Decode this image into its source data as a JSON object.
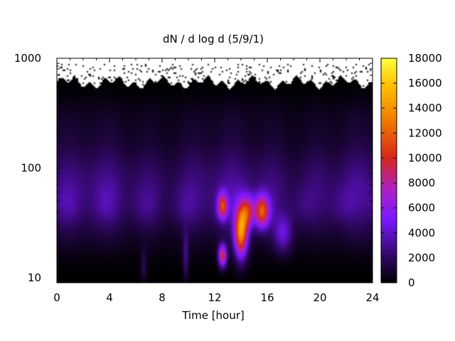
{
  "chart_data": {
    "type": "heatmap",
    "title": "dN / d log d (5/9/1)",
    "xlabel": "Time [hour]",
    "ylabel": "",
    "xlim": [
      0,
      24
    ],
    "ylim": [
      9,
      1000
    ],
    "y_scale": "log",
    "x_ticks": [
      0,
      4,
      8,
      12,
      16,
      20,
      24
    ],
    "y_ticks": [
      10,
      100,
      1000
    ],
    "colorbar": {
      "range": [
        0,
        18000
      ],
      "ticks": [
        0,
        2000,
        4000,
        6000,
        8000,
        10000,
        12000,
        14000,
        16000,
        18000
      ],
      "colormap": [
        "#000000",
        "#3a0a78",
        "#7a18ff",
        "#b020c0",
        "#d82818",
        "#f07a00",
        "#ffe000",
        "#ffff40"
      ]
    },
    "features": [
      {
        "description": "background diffuse mode",
        "x": [
          0,
          24
        ],
        "diameter": [
          30,
          200
        ],
        "value": 3000
      },
      {
        "description": "large particle cutoff (no data above)",
        "diameter_max": 600
      },
      {
        "description": "strong event",
        "x_center": 14.0,
        "diameter_center": 25,
        "value": 14000
      },
      {
        "description": "secondary peak",
        "x_center": 15.6,
        "diameter_center": 40,
        "value": 10000
      },
      {
        "description": "early peak",
        "x_center": 12.6,
        "diameter_center": 45,
        "value": 9000
      },
      {
        "description": "small particle burst",
        "x_center": 12.6,
        "diameter_center": 15,
        "value": 10000
      }
    ]
  }
}
